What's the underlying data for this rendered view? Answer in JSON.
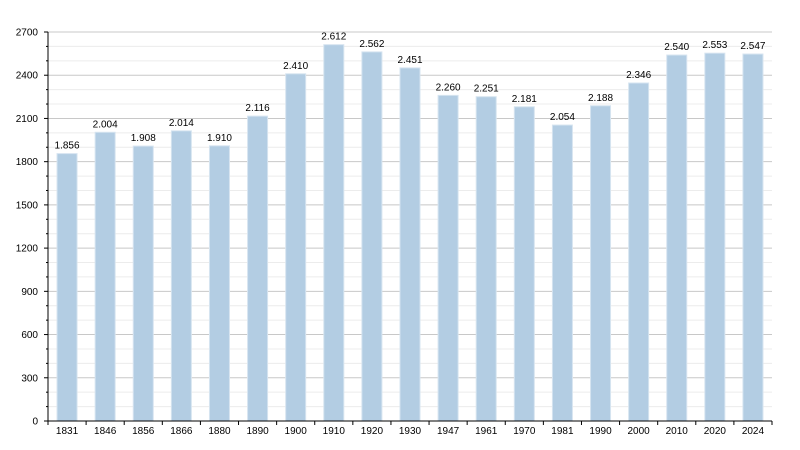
{
  "chart_data": {
    "type": "bar",
    "categories": [
      "1831",
      "1846",
      "1856",
      "1866",
      "1880",
      "1890",
      "1900",
      "1910",
      "1920",
      "1930",
      "1947",
      "1961",
      "1970",
      "1981",
      "1990",
      "2000",
      "2010",
      "2020",
      "2024"
    ],
    "values": [
      1856,
      2004,
      1908,
      2014,
      1910,
      2116,
      2410,
      2612,
      2562,
      2451,
      2260,
      2251,
      2181,
      2054,
      2188,
      2346,
      2540,
      2553,
      2547
    ],
    "data_labels": [
      "1.856",
      "2.004",
      "1.908",
      "2.014",
      "1.910",
      "2.116",
      "2.410",
      "2.612",
      "2.562",
      "2.451",
      "2.260",
      "2.251",
      "2.181",
      "2.054",
      "2.188",
      "2.346",
      "2.540",
      "2.553",
      "2.547"
    ],
    "title": "",
    "xlabel": "",
    "ylabel": "",
    "ylim": [
      0,
      2700
    ],
    "y_ticks": [
      0,
      300,
      600,
      900,
      1200,
      1500,
      1800,
      2100,
      2400,
      2700
    ],
    "y_tick_labels": [
      "0",
      "300",
      "600",
      "900",
      "1200",
      "1500",
      "1800",
      "2100",
      "2400",
      "2700"
    ],
    "grid": true,
    "legend": "none",
    "colors": {
      "bar": "#b3cde3",
      "bar_edge": "#d6e4f0",
      "grid": "#c8c8c8",
      "axis": "#000000"
    }
  }
}
